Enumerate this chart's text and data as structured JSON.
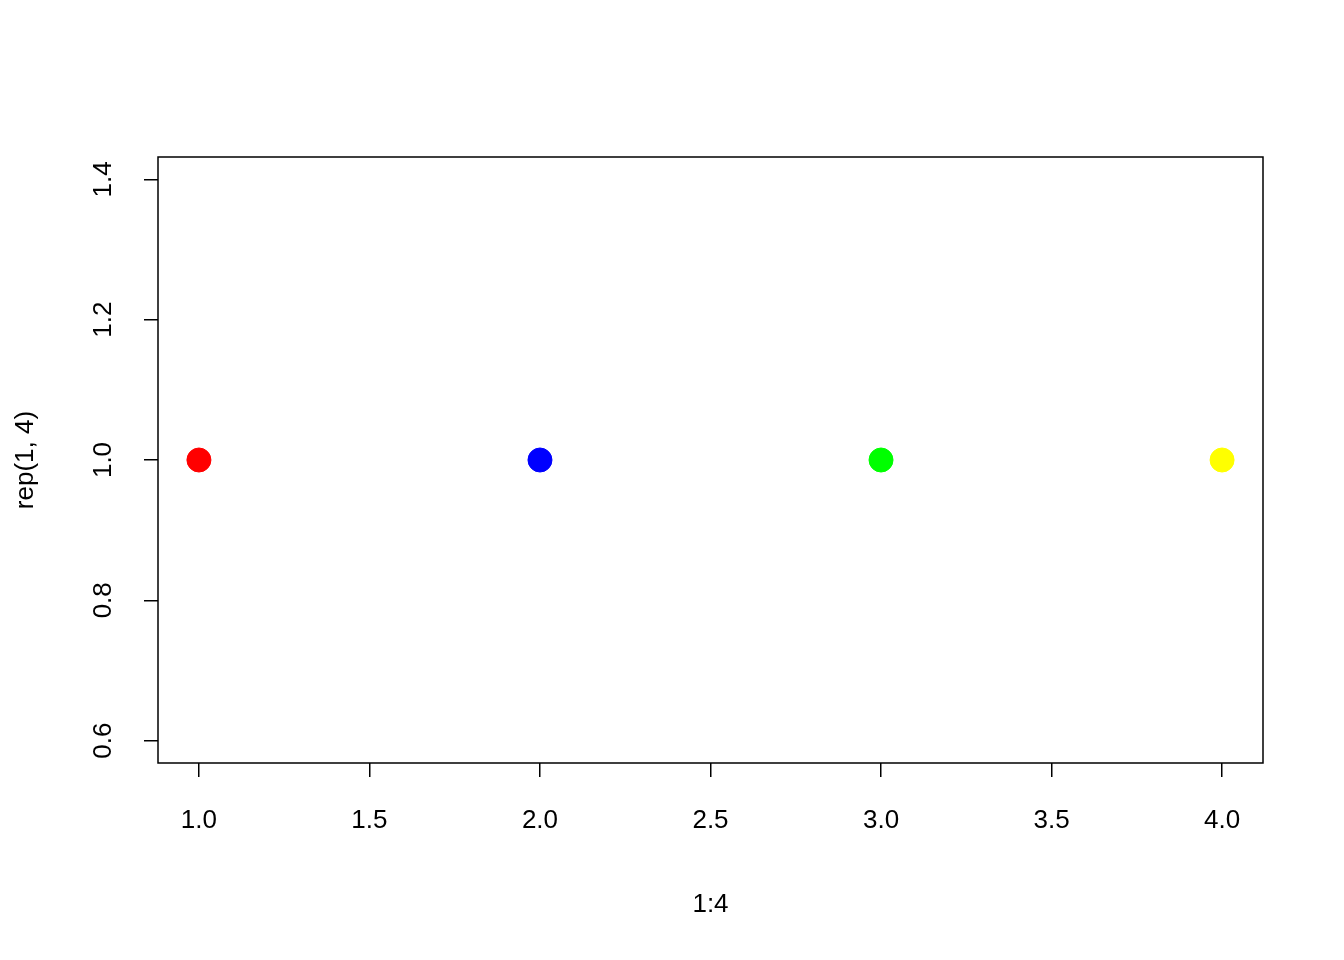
{
  "chart_data": {
    "type": "scatter",
    "xlabel": "1:4",
    "ylabel": "rep(1, 4)",
    "x": [
      1,
      2,
      3,
      4
    ],
    "values": [
      1,
      1,
      1,
      1
    ],
    "colors": [
      "#ff0000",
      "#0000ff",
      "#00ff00",
      "#ffff00"
    ],
    "marker": "circle",
    "xlim": [
      0.88,
      4.12
    ],
    "xticks": [
      {
        "value": 1,
        "label": "1.0"
      },
      {
        "value": 1.5,
        "label": "1.5"
      },
      {
        "value": 2,
        "label": "2.0"
      },
      {
        "value": 2.5,
        "label": "2.5"
      },
      {
        "value": 3,
        "label": "3.0"
      },
      {
        "value": 3.5,
        "label": "3.5"
      },
      {
        "value": 4,
        "label": "4.0"
      }
    ],
    "ylim": [
      0.568,
      1.432
    ],
    "yticks": [
      {
        "value": 0.6,
        "label": "0.6"
      },
      {
        "value": 0.8,
        "label": "0.8"
      },
      {
        "value": 1,
        "label": "1.0"
      },
      {
        "value": 1.2,
        "label": "1.2"
      },
      {
        "value": 1.4,
        "label": "1.4"
      }
    ],
    "grid": false,
    "legend": false
  }
}
